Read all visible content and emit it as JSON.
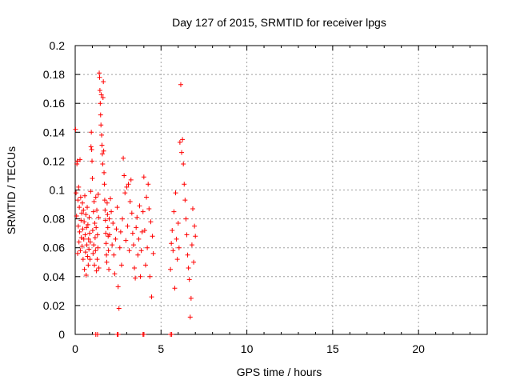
{
  "chart_data": {
    "type": "scatter",
    "title": "Day 127 of 2015, SRMTID for receiver lpgs",
    "xlabel": "GPS time / hours",
    "ylabel": "SRMTID / TECUs",
    "xlim": [
      0,
      24
    ],
    "ylim": [
      0,
      0.2
    ],
    "xticks": [
      0,
      5,
      10,
      15,
      20
    ],
    "xtick_labels": [
      "0",
      "5",
      "10",
      "15",
      "20"
    ],
    "yticks": [
      0,
      0.02,
      0.04,
      0.06,
      0.08,
      0.1,
      0.12,
      0.14,
      0.16,
      0.18,
      0.2
    ],
    "ytick_labels": [
      "0",
      "0.02",
      "0.04",
      "0.06",
      "0.08",
      "0.1",
      "0.12",
      "0.14",
      "0.16",
      "0.18",
      "0.2"
    ],
    "grid": true,
    "marker": "plus",
    "color": "#ff0000",
    "series": [
      {
        "points": [
          [
            0.02,
            0.142
          ],
          [
            0.05,
            0.098
          ],
          [
            0.08,
            0.082
          ],
          [
            0.1,
            0.118
          ],
          [
            0.12,
            0.12
          ],
          [
            0.14,
            0.056
          ],
          [
            0.16,
            0.093
          ],
          [
            0.18,
            0.075
          ],
          [
            0.2,
            0.102
          ],
          [
            0.22,
            0.064
          ],
          [
            0.24,
            0.088
          ],
          [
            0.26,
            0.071
          ],
          [
            0.28,
            0.121
          ],
          [
            0.3,
            0.058
          ],
          [
            0.32,
            0.095
          ],
          [
            0.34,
            0.079
          ],
          [
            0.36,
            0.067
          ],
          [
            0.38,
            0.084
          ],
          [
            0.4,
            0.061
          ],
          [
            0.42,
            0.091
          ],
          [
            0.44,
            0.073
          ],
          [
            0.46,
            0.052
          ],
          [
            0.48,
            0.086
          ],
          [
            0.5,
            0.066
          ],
          [
            0.52,
            0.078
          ],
          [
            0.54,
            0.045
          ],
          [
            0.56,
            0.096
          ],
          [
            0.58,
            0.069
          ],
          [
            0.6,
            0.057
          ],
          [
            0.62,
            0.083
          ],
          [
            0.64,
            0.041
          ],
          [
            0.66,
            0.074
          ],
          [
            0.68,
            0.062
          ],
          [
            0.7,
            0.088
          ],
          [
            0.72,
            0.054
          ],
          [
            0.74,
            0.076
          ],
          [
            0.76,
            0.048
          ],
          [
            0.78,
            0.066
          ],
          [
            0.8,
            0.059
          ],
          [
            0.82,
            0.081
          ],
          [
            0.84,
            0.07
          ],
          [
            0.86,
            0.052
          ],
          [
            0.88,
            0.064
          ],
          [
            0.9,
            0.099
          ],
          [
            0.92,
            0.13
          ],
          [
            0.94,
            0.14
          ],
          [
            0.96,
            0.128
          ],
          [
            0.98,
            0.12
          ],
          [
            1.0,
            0.108
          ],
          [
            1.02,
            0.072
          ],
          [
            1.04,
            0.056
          ],
          [
            1.06,
            0.085
          ],
          [
            1.08,
            0.062
          ],
          [
            1.1,
            0.092
          ],
          [
            1.12,
            0.048
          ],
          [
            1.14,
            0.077
          ],
          [
            1.16,
            0.067
          ],
          [
            1.18,
            0.058
          ],
          [
            1.2,
            0.095
          ],
          [
            1.22,
            0.074
          ],
          [
            1.24,
            0.044
          ],
          [
            1.26,
            0.086
          ],
          [
            1.28,
            0.052
          ],
          [
            1.3,
            0.069
          ],
          [
            1.32,
            0.06
          ],
          [
            1.34,
            0.097
          ],
          [
            1.36,
            0.081
          ],
          [
            1.38,
            0.046
          ],
          [
            1.4,
            0.181
          ],
          [
            1.42,
            0.178
          ],
          [
            1.44,
            0.169
          ],
          [
            1.46,
            0.16
          ],
          [
            1.48,
            0.152
          ],
          [
            1.5,
            0.145
          ],
          [
            1.52,
            0.166
          ],
          [
            1.54,
            0.138
          ],
          [
            1.56,
            0.131
          ],
          [
            1.58,
            0.125
          ],
          [
            1.6,
            0.118
          ],
          [
            1.62,
            0.164
          ],
          [
            1.64,
            0.175
          ],
          [
            1.66,
            0.127
          ],
          [
            1.68,
            0.112
          ],
          [
            1.7,
            0.104
          ],
          [
            1.72,
            0.093
          ],
          [
            1.74,
            0.086
          ],
          [
            1.76,
            0.079
          ],
          [
            1.78,
            0.07
          ],
          [
            1.8,
            0.063
          ],
          [
            1.82,
            0.055
          ],
          [
            1.84,
            0.05
          ],
          [
            1.86,
            0.091
          ],
          [
            1.88,
            0.083
          ],
          [
            1.9,
            0.074
          ],
          [
            1.92,
            0.068
          ],
          [
            1.94,
            0.058
          ],
          [
            1.96,
            0.045
          ],
          [
            1.98,
            0.08
          ],
          [
            2.0,
            0.069
          ],
          [
            2.05,
            0.094
          ],
          [
            2.1,
            0.085
          ],
          [
            2.15,
            0.062
          ],
          [
            2.2,
            0.077
          ],
          [
            2.25,
            0.055
          ],
          [
            2.3,
            0.042
          ],
          [
            2.35,
            0.066
          ],
          [
            2.4,
            0.073
          ],
          [
            2.45,
            0.088
          ],
          [
            2.5,
            0.033
          ],
          [
            2.55,
            0.018
          ],
          [
            2.6,
            0.06
          ],
          [
            2.65,
            0.071
          ],
          [
            2.7,
            0.048
          ],
          [
            2.75,
            0.08
          ],
          [
            2.8,
            0.122
          ],
          [
            2.85,
            0.11
          ],
          [
            2.9,
            0.098
          ],
          [
            2.95,
            0.065
          ],
          [
            3.0,
            0.102
          ],
          [
            3.05,
            0.075
          ],
          [
            3.1,
            0.104
          ],
          [
            3.15,
            0.058
          ],
          [
            3.2,
            0.092
          ],
          [
            3.25,
            0.107
          ],
          [
            3.3,
            0.084
          ],
          [
            3.35,
            0.07
          ],
          [
            3.4,
            0.062
          ],
          [
            3.45,
            0.046
          ],
          [
            3.5,
            0.039
          ],
          [
            3.55,
            0.074
          ],
          [
            3.6,
            0.081
          ],
          [
            3.65,
            0.055
          ],
          [
            3.7,
            0.066
          ],
          [
            3.75,
            0.089
          ],
          [
            3.8,
            0.04
          ],
          [
            3.85,
            0.058
          ],
          [
            3.9,
            0.071
          ],
          [
            3.95,
            0.085
          ],
          [
            4.0,
            0.109
          ],
          [
            4.05,
            0.072
          ],
          [
            4.1,
            0.048
          ],
          [
            4.15,
            0.095
          ],
          [
            4.2,
            0.06
          ],
          [
            4.25,
            0.104
          ],
          [
            4.3,
            0.087
          ],
          [
            4.35,
            0.04
          ],
          [
            4.4,
            0.078
          ],
          [
            4.45,
            0.026
          ],
          [
            4.5,
            0.068
          ],
          [
            4.55,
            0.056
          ],
          [
            5.55,
            0.045
          ],
          [
            5.6,
            0.063
          ],
          [
            5.65,
            0.072
          ],
          [
            5.7,
            0.058
          ],
          [
            5.75,
            0.085
          ],
          [
            5.8,
            0.032
          ],
          [
            5.85,
            0.098
          ],
          [
            5.9,
            0.066
          ],
          [
            5.95,
            0.052
          ],
          [
            6.0,
            0.077
          ],
          [
            6.05,
            0.06
          ],
          [
            6.1,
            0.133
          ],
          [
            6.15,
            0.173
          ],
          [
            6.2,
            0.126
          ],
          [
            6.25,
            0.135
          ],
          [
            6.3,
            0.118
          ],
          [
            6.35,
            0.104
          ],
          [
            6.4,
            0.093
          ],
          [
            6.45,
            0.08
          ],
          [
            6.5,
            0.069
          ],
          [
            6.55,
            0.055
          ],
          [
            6.6,
            0.046
          ],
          [
            6.65,
            0.038
          ],
          [
            6.7,
            0.012
          ],
          [
            6.75,
            0.025
          ],
          [
            6.8,
            0.062
          ],
          [
            6.85,
            0.087
          ],
          [
            6.9,
            0.05
          ],
          [
            6.95,
            0.075
          ],
          [
            7.0,
            0.068
          ],
          [
            1.2,
            0.0
          ],
          [
            1.3,
            0.0
          ],
          [
            2.45,
            0.0
          ],
          [
            2.5,
            0.0
          ],
          [
            3.95,
            0.0
          ],
          [
            4.0,
            0.0
          ],
          [
            5.55,
            0.0
          ],
          [
            5.62,
            0.0
          ]
        ]
      }
    ]
  }
}
